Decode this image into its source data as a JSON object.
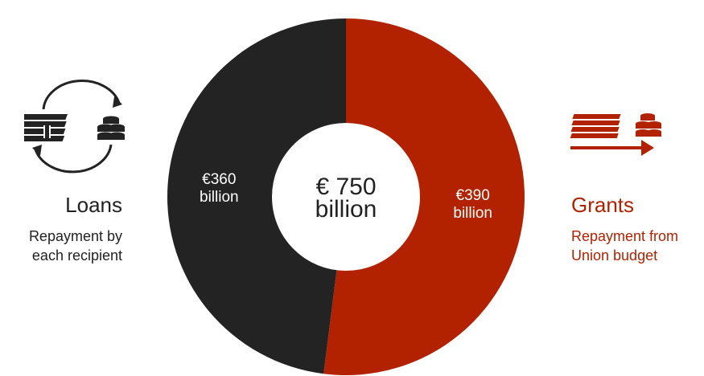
{
  "colors": {
    "loans": "#232323",
    "grants": "#b32200",
    "background": "#ffffff"
  },
  "chart_data": {
    "type": "pie",
    "variant": "donut",
    "center_label": [
      "€ 750",
      "billion"
    ],
    "categories": [
      "Grants",
      "Loans"
    ],
    "values": [
      390,
      360
    ],
    "unit": "billion €",
    "data_labels": [
      [
        "€390",
        "billion"
      ],
      [
        "€360",
        "billion"
      ]
    ],
    "colors": [
      "#b32200",
      "#232323"
    ]
  },
  "loans": {
    "title": "Loans",
    "subtitle_lines": [
      "Repayment by",
      "each recipient"
    ],
    "icon": "money-cycle-icon"
  },
  "grants": {
    "title": "Grants",
    "subtitle_lines": [
      "Repayment from",
      "Union budget"
    ],
    "icon": "money-transfer-icon"
  }
}
